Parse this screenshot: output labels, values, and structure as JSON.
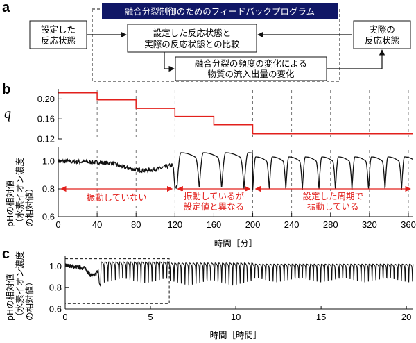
{
  "panel_a": {
    "letter": "a",
    "program_title": "融合分裂制御のためのフィードバックプログラム",
    "box_setpoint": [
      "設定した",
      "反応状態"
    ],
    "box_compare": [
      "設定した反応状態と",
      "実際の反応状態との比較"
    ],
    "box_actual": [
      "実際の",
      "反応状態"
    ],
    "box_flow": [
      "融合分裂の頻度の変化による",
      "物質の流入出量の変化"
    ]
  },
  "colors": {
    "accent": "#e2201c",
    "title_bg": "#101766",
    "title_text": "#ffffff",
    "line": "#111111",
    "grid": "#555555"
  },
  "chart_data": [
    {
      "id": "b-top",
      "letter": "b",
      "type": "line",
      "ylabel": "q",
      "xlim": [
        0,
        365
      ],
      "ylim": [
        0.12,
        0.22
      ],
      "yticks": [
        "0.20",
        "0.16",
        "0.12"
      ],
      "ytick_values": [
        0.2,
        0.16,
        0.12
      ],
      "series_color": "#e2201c",
      "series": [
        {
          "name": "q",
          "x": [
            0,
            40,
            40,
            80,
            80,
            120,
            120,
            160,
            160,
            200,
            200,
            365
          ],
          "values": [
            0.212,
            0.212,
            0.198,
            0.198,
            0.181,
            0.181,
            0.165,
            0.165,
            0.148,
            0.148,
            0.13,
            0.13
          ]
        }
      ],
      "vlines": [
        40,
        80,
        120,
        160,
        200,
        240,
        280,
        320,
        360
      ]
    },
    {
      "id": "b-bottom",
      "type": "line",
      "ylabel": [
        "pHの相対値",
        "（水素イオン濃度",
        "の相対値）"
      ],
      "xlabel": "時間［分］",
      "xlim": [
        0,
        365
      ],
      "ylim": [
        0.6,
        1.1
      ],
      "xticks": [
        "0",
        "40",
        "80",
        "120",
        "160",
        "200",
        "240",
        "280",
        "320",
        "360"
      ],
      "xtick_values": [
        0,
        40,
        80,
        120,
        160,
        200,
        240,
        280,
        320,
        360
      ],
      "yticks": [
        "1.0",
        "0.8",
        "0.6"
      ],
      "ytick_values": [
        1.0,
        0.8,
        0.6
      ],
      "vlines": [
        40,
        80,
        120,
        160,
        200,
        240,
        280,
        320,
        360
      ],
      "regions": [
        {
          "from": 0,
          "to": 120,
          "label": [
            "振動していない"
          ]
        },
        {
          "from": 120,
          "to": 200,
          "label": [
            "振動しているが",
            "設定値と異なる"
          ]
        },
        {
          "from": 200,
          "to": 365,
          "label": [
            "設定した周期で",
            "振動している"
          ]
        }
      ],
      "arrow_level": 0.8
    },
    {
      "id": "c",
      "letter": "c",
      "type": "line",
      "ylabel": [
        "pHの相対値",
        "（水素イオン濃度",
        "の相対値）"
      ],
      "xlabel": "時間［時間］",
      "xlim": [
        0,
        20.4
      ],
      "ylim": [
        0.6,
        1.1
      ],
      "xticks": [
        "0",
        "5",
        "10",
        "15",
        "20"
      ],
      "xtick_values": [
        0,
        5,
        10,
        15,
        20
      ],
      "yticks": [
        "1.0",
        "0.8",
        "0.6"
      ],
      "ytick_values": [
        1.0,
        0.8,
        0.6
      ],
      "zoom_box_hours": [
        0,
        6.1
      ],
      "zoom_box_values": [
        0.65,
        1.07
      ]
    }
  ]
}
